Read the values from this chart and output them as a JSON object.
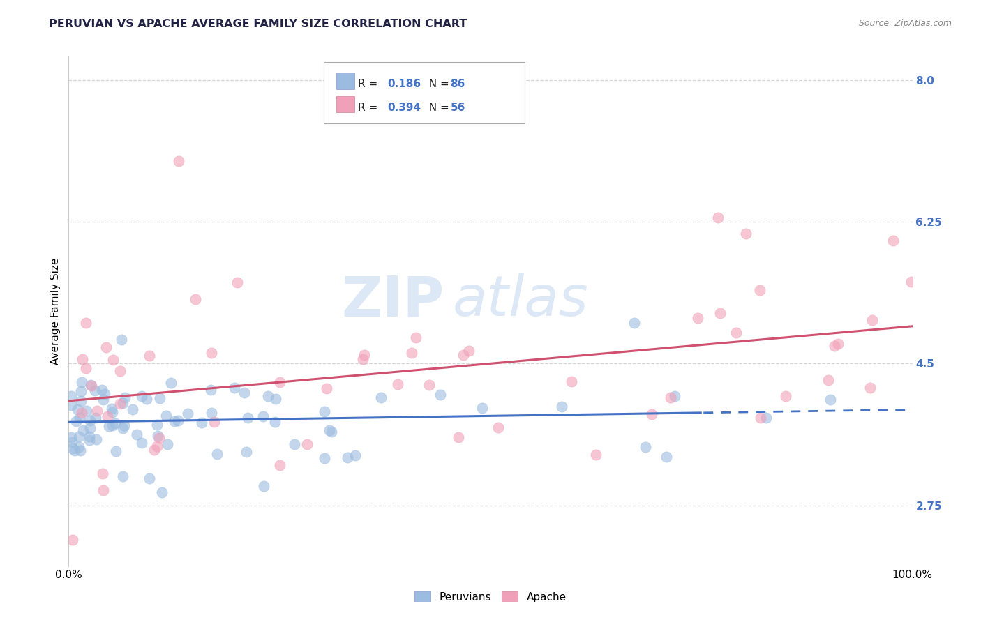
{
  "title": "PERUVIAN VS APACHE AVERAGE FAMILY SIZE CORRELATION CHART",
  "source_text": "Source: ZipAtlas.com",
  "ylabel": "Average Family Size",
  "xlim": [
    0.0,
    100.0
  ],
  "ylim": [
    2.0,
    8.3
  ],
  "yticks": [
    2.75,
    4.5,
    6.25,
    8.0
  ],
  "legend_label1": "Peruvians",
  "legend_label2": "Apache",
  "r1": 0.186,
  "n1": 86,
  "r2": 0.394,
  "n2": 56,
  "color_peruvian": "#9bbce0",
  "color_apache": "#f0a0b8",
  "color_line_peruvian": "#4472c4",
  "color_line_apache": "#d05070",
  "color_axis_labels": "#4472c4",
  "color_source": "#888888",
  "watermark_zip": "ZIP",
  "watermark_atlas": "atlas",
  "watermark_color": "#dce8f5",
  "background_color": "#ffffff",
  "grid_color": "#cccccc"
}
